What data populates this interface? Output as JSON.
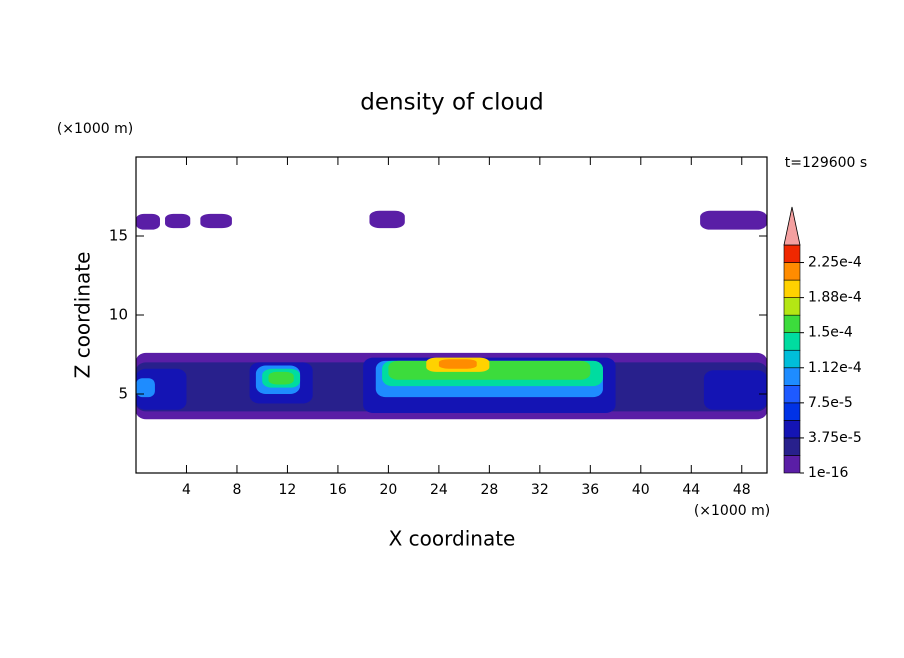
{
  "chart_data": {
    "type": "contour",
    "title": "density of cloud",
    "xlabel": "X coordinate",
    "ylabel": "Z coordinate",
    "xunit": "(×1000 m)",
    "yunit": "(×1000 m)",
    "annotation": "t=129600 s",
    "xlim": [
      0,
      50
    ],
    "xticks": [
      4,
      8,
      12,
      16,
      20,
      24,
      28,
      32,
      36,
      40,
      44,
      48
    ],
    "ylim": [
      0,
      20
    ],
    "yticks": [
      5,
      10,
      15
    ],
    "levels": [
      1e-16,
      1.875e-05,
      3.75e-05,
      5.625e-05,
      7.5e-05,
      9.375e-05,
      0.0001125,
      0.00013125,
      0.00015,
      0.00016875,
      0.0001875,
      0.00020625,
      0.000225,
      0.00024375
    ],
    "colors": [
      "#5a1ea6",
      "#28208c",
      "#1414b4",
      "#0032e6",
      "#1e5aff",
      "#1e8cff",
      "#00beda",
      "#00dca0",
      "#3cdc3c",
      "#b4e614",
      "#ffd200",
      "#ff8c00",
      "#f02800"
    ],
    "extend_color": "#f4a0a0",
    "cticks": [
      {
        "value": 1e-16,
        "label": "1e-16"
      },
      {
        "value": 3.75e-05,
        "label": "3.75e-5"
      },
      {
        "value": 7.5e-05,
        "label": "7.5e-5"
      },
      {
        "value": 0.0001125,
        "label": "1.12e-4"
      },
      {
        "value": 0.00015,
        "label": "1.5e-4"
      },
      {
        "value": 0.0001875,
        "label": "1.88e-4"
      },
      {
        "value": 0.000225,
        "label": "2.25e-4"
      }
    ],
    "cells": [
      {
        "x": [
          0,
          1.9
        ],
        "z": [
          15.4,
          16.4
        ],
        "value": 1e-16
      },
      {
        "x": [
          2.3,
          4.3
        ],
        "z": [
          15.5,
          16.4
        ],
        "value": 1e-16
      },
      {
        "x": [
          5.1,
          7.6
        ],
        "z": [
          15.5,
          16.4
        ],
        "value": 1e-16
      },
      {
        "x": [
          18.5,
          21.3
        ],
        "z": [
          15.5,
          16.6
        ],
        "value": 1e-16
      },
      {
        "x": [
          44.7,
          50
        ],
        "z": [
          15.4,
          16.6
        ],
        "value": 1e-16
      },
      {
        "x": [
          0,
          50
        ],
        "z": [
          3.4,
          7.6
        ],
        "value": 1e-16
      },
      {
        "x": [
          0,
          50
        ],
        "z": [
          3.9,
          7.0
        ],
        "value": 2e-05
      },
      {
        "x": [
          0,
          4
        ],
        "z": [
          4.0,
          6.6
        ],
        "value": 5e-05
      },
      {
        "x": [
          9,
          14
        ],
        "z": [
          4.4,
          7.0
        ],
        "value": 5e-05
      },
      {
        "x": [
          18,
          38
        ],
        "z": [
          3.8,
          7.3
        ],
        "value": 5e-05
      },
      {
        "x": [
          45,
          50
        ],
        "z": [
          4.0,
          6.5
        ],
        "value": 5e-05
      },
      {
        "x": [
          0,
          1.5
        ],
        "z": [
          4.8,
          6.0
        ],
        "value": 0.0001
      },
      {
        "x": [
          9.5,
          13
        ],
        "z": [
          5.0,
          6.8
        ],
        "value": 0.0001
      },
      {
        "x": [
          19,
          37
        ],
        "z": [
          4.8,
          7.1
        ],
        "value": 0.0001
      },
      {
        "x": [
          10,
          13
        ],
        "z": [
          5.4,
          6.6
        ],
        "value": 0.000135
      },
      {
        "x": [
          19.5,
          37
        ],
        "z": [
          5.5,
          7.1
        ],
        "value": 0.000135
      },
      {
        "x": [
          10.5,
          12.5
        ],
        "z": [
          5.6,
          6.4
        ],
        "value": 0.00016
      },
      {
        "x": [
          20,
          36
        ],
        "z": [
          5.9,
          7.1
        ],
        "value": 0.00016
      },
      {
        "x": [
          23,
          28
        ],
        "z": [
          6.4,
          7.3
        ],
        "value": 0.00019
      },
      {
        "x": [
          24,
          27
        ],
        "z": [
          6.6,
          7.2
        ],
        "value": 0.00021
      }
    ]
  }
}
